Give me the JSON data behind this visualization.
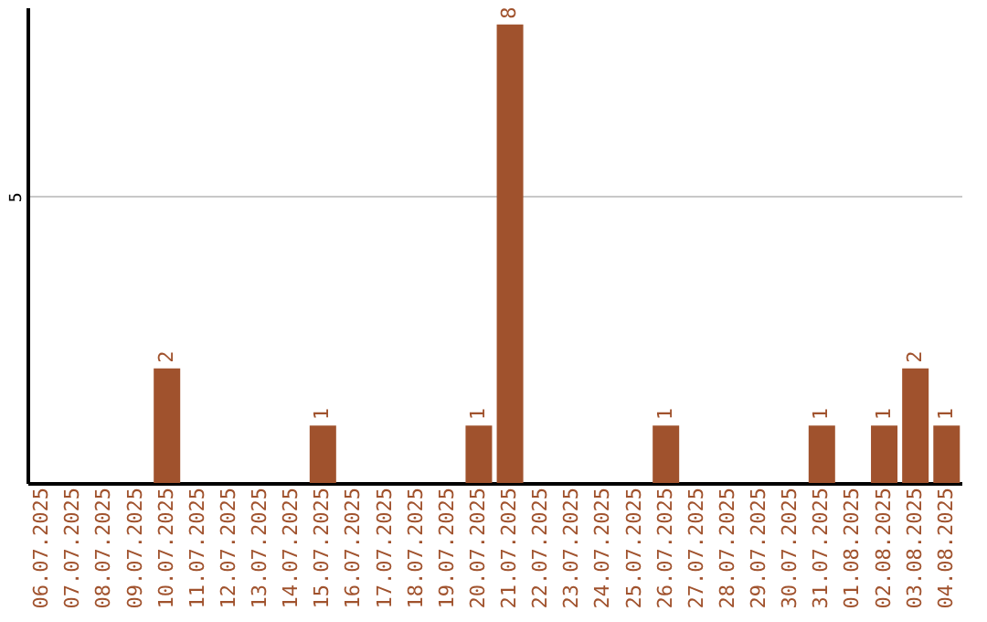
{
  "chart_data": {
    "type": "bar",
    "categories": [
      "06.07.2025",
      "07.07.2025",
      "08.07.2025",
      "09.07.2025",
      "10.07.2025",
      "11.07.2025",
      "12.07.2025",
      "13.07.2025",
      "14.07.2025",
      "15.07.2025",
      "16.07.2025",
      "17.07.2025",
      "18.07.2025",
      "19.07.2025",
      "20.07.2025",
      "21.07.2025",
      "22.07.2025",
      "23.07.2025",
      "24.07.2025",
      "25.07.2025",
      "26.07.2025",
      "27.07.2025",
      "28.07.2025",
      "29.07.2025",
      "30.07.2025",
      "31.07.2025",
      "01.08.2025",
      "02.08.2025",
      "03.08.2025",
      "04.08.2025"
    ],
    "values": [
      0,
      0,
      0,
      0,
      2,
      0,
      0,
      0,
      0,
      1,
      0,
      0,
      0,
      0,
      1,
      8,
      0,
      0,
      0,
      0,
      1,
      0,
      0,
      0,
      0,
      1,
      0,
      1,
      2,
      1
    ],
    "value_labels": [
      null,
      null,
      null,
      null,
      "2",
      null,
      null,
      null,
      null,
      "1",
      null,
      null,
      null,
      null,
      "1",
      "8",
      null,
      null,
      null,
      null,
      "1",
      null,
      null,
      null,
      null,
      "1",
      null,
      "1",
      "2",
      "1"
    ],
    "color": "#a0522d",
    "ylim": [
      0,
      8.3
    ],
    "yticks": [
      5
    ],
    "grid": "y"
  }
}
